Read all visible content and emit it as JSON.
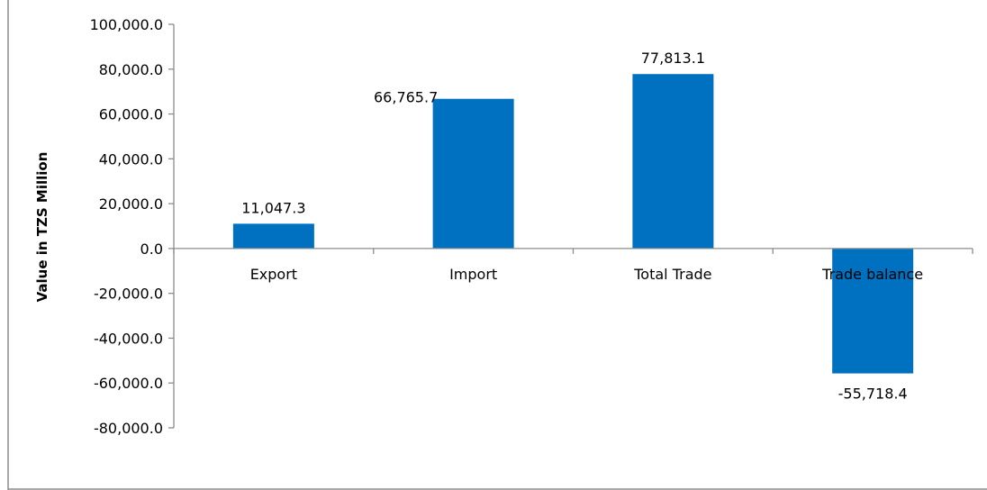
{
  "chart_data": {
    "type": "bar",
    "categories": [
      "Export",
      "Import",
      "Total Trade",
      "Trade balance"
    ],
    "values": [
      11047.3,
      66765.7,
      77813.1,
      -55718.4
    ],
    "data_labels": [
      "11,047.3",
      "66,765.7",
      "77,813.1",
      "-55,718.4"
    ],
    "title": "",
    "xlabel": "",
    "ylabel": "Value in TZS Million",
    "ylim": [
      -80000,
      100000
    ],
    "yticks": [
      100000,
      80000,
      60000,
      40000,
      20000,
      0,
      -20000,
      -40000,
      -60000,
      -80000
    ],
    "ytick_labels": [
      "100,000.0",
      "80,000.0",
      "60,000.0",
      "40,000.0",
      "20,000.0",
      "0.0",
      "-20,000.0",
      "-40,000.0",
      "-60,000.0",
      "-80,000.0"
    ],
    "grid": false,
    "legend": "none",
    "bar_color": "#0070C0"
  }
}
